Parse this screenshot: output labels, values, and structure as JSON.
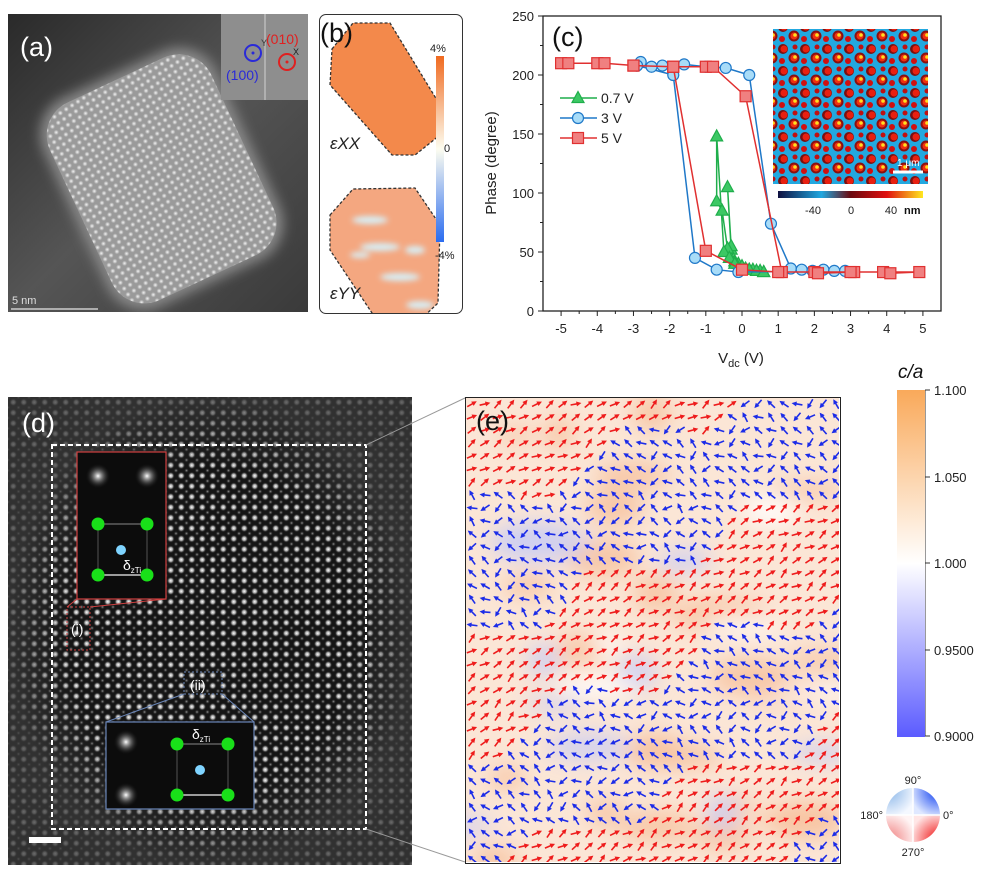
{
  "panel_a": {
    "label": "(a)",
    "scalebar": "5 nm",
    "fft_inset": {
      "spot_100": "(100)",
      "spot_010": "(010)",
      "axis_y": "Y",
      "axis_x": "X",
      "colors": {
        "spot_100": "#2a2ad8",
        "spot_010": "#e02020"
      }
    }
  },
  "panel_b": {
    "label": "(b)",
    "map_top": "εXX",
    "map_bottom": "εYY",
    "colorbar": {
      "max": "4%",
      "mid": "0",
      "min": "-4%",
      "colors": [
        "#f06a20",
        "#fdfdf0",
        "#2a6cf0"
      ]
    }
  },
  "panel_d": {
    "label": "(d)",
    "inset_i_label": "(i)",
    "inset_ii_label": "(ii)",
    "delta_symbol": "δ",
    "delta_sub": "zTi",
    "colors": {
      "atom_green": "#19e019",
      "atom_ti": "#7fd4ff",
      "inset_i_border": "#d04040",
      "inset_ii_border": "#6a86b8"
    }
  },
  "panel_e": {
    "label": "(e)",
    "colorbar": {
      "title": "c/a",
      "ticks": [
        "1.100",
        "1.050",
        "1.000",
        "0.9500",
        "0.9000"
      ],
      "range": [
        0.9,
        1.1
      ],
      "colors": [
        "#f9a95a",
        "#ffffff",
        "#5b5bff"
      ]
    },
    "angle_wheel": {
      "top": "90°",
      "right": "0°",
      "left": "180°",
      "bottom": "270°"
    },
    "arrow_colors": {
      "red": "#ee1c1c",
      "blue": "#1c2ce8"
    }
  },
  "chart_data": {
    "type": "line",
    "panel_label": "(c)",
    "xlabel_main": "V",
    "xlabel_sub": "dc",
    "xlabel_unit": " (V)",
    "ylabel": "Phase (degree)",
    "xlim": [
      -5.5,
      5.5
    ],
    "ylim": [
      0,
      250
    ],
    "xticks": [
      "-5",
      "-4",
      "-3",
      "-2",
      "-1",
      "0",
      "1",
      "2",
      "3",
      "4",
      "5"
    ],
    "yticks": [
      "0",
      "50",
      "100",
      "150",
      "200",
      "250"
    ],
    "grid": false,
    "legend_placement": "upper-left",
    "series": [
      {
        "name": "0.7 V",
        "marker": "triangle",
        "color": "#1fae4b",
        "fill": "#3cc864",
        "x": [
          0.6,
          0.5,
          0.4,
          0.3,
          0.2,
          0.1,
          0.0,
          -0.1,
          -0.2,
          -0.3,
          -0.4,
          -0.3,
          -0.4,
          -0.55,
          -0.7,
          -0.7,
          -0.5,
          -0.35,
          -0.2,
          0.0,
          0.2,
          0.4,
          0.6
        ],
        "y": [
          33,
          34,
          34,
          35,
          35,
          36,
          37,
          40,
          42,
          52,
          105,
          55,
          53,
          85,
          93,
          148,
          50,
          45,
          40,
          38,
          35,
          34,
          33
        ]
      },
      {
        "name": "3 V",
        "marker": "circle",
        "color": "#1f78c8",
        "fill": "#a8dcf8",
        "x": [
          -2.9,
          -2.8,
          -2.5,
          -2.2,
          -1.6,
          -1.0,
          -0.45,
          0.2,
          0.8,
          1.35,
          1.65,
          1.95,
          2.25,
          2.55,
          2.85,
          -0.1,
          -0.7,
          -1.3,
          -1.9,
          -2.9
        ],
        "y": [
          208,
          211,
          207,
          208,
          209,
          207,
          206,
          200,
          74,
          36,
          35,
          34,
          35,
          34,
          34,
          33,
          35,
          45,
          200,
          208
        ]
      },
      {
        "name": "5 V",
        "marker": "square",
        "color": "#e03030",
        "fill": "#f08080",
        "x": [
          -5.0,
          -4.8,
          -4.0,
          -3.8,
          -3.0,
          -1.9,
          -1.0,
          -0.8,
          0.1,
          1.1,
          2.0,
          2.1,
          3.1,
          3.9,
          4.1,
          4.9,
          3.0,
          1.0,
          0.0,
          -1.0,
          -1.9,
          -3.0
        ],
        "y": [
          210,
          210,
          210,
          210,
          208,
          207,
          207,
          207,
          182,
          33,
          33,
          32,
          33,
          33,
          32,
          33,
          33,
          33,
          35,
          51,
          207,
          208
        ]
      }
    ],
    "inset": {
      "colorbar_ticks": [
        "-40",
        "0",
        "40"
      ],
      "colorbar_unit": "nm",
      "scalebar": "1 μm",
      "colors": [
        "#101040",
        "#20a8e0",
        "#6a0a10",
        "#e01010",
        "#ffe820"
      ]
    }
  }
}
